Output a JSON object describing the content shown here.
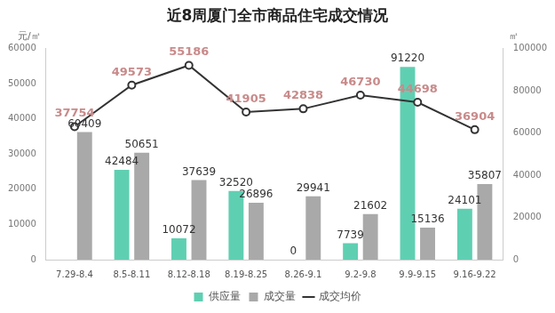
{
  "chart_data": {
    "type": "bar",
    "title": "近8周厦门全市商品住宅成交情况",
    "categories": [
      "7.29-8.4",
      "8.5-8.11",
      "8.12-8.18",
      "8.19-8.25",
      "8.26-9.1",
      "9.2-9.8",
      "9.9-9.15",
      "9.16-9.22"
    ],
    "series": [
      {
        "name": "供应量",
        "type": "bar",
        "axis": "y2",
        "color": "#5fcfb2",
        "values": [
          null,
          42484,
          10072,
          32520,
          0,
          7739,
          91220,
          24101
        ]
      },
      {
        "name": "成交量",
        "type": "bar",
        "axis": "y2",
        "color": "#a9a9a9",
        "values": [
          60409,
          50651,
          37639,
          26896,
          29941,
          21602,
          15136,
          35807
        ]
      },
      {
        "name": "成交均价",
        "type": "line",
        "color": "#333333",
        "marker": "circle",
        "values": [
          37754,
          49573,
          55186,
          41905,
          42838,
          46730,
          44698,
          36904
        ]
      }
    ],
    "y_label": "元/㎡",
    "y2_label": "㎡",
    "ylim": [
      0,
      60000
    ],
    "yticks": [
      0,
      10000,
      20000,
      30000,
      40000,
      50000,
      60000
    ],
    "y2lim": [
      0,
      100000
    ],
    "y2ticks": [
      0,
      20000,
      40000,
      60000,
      80000,
      100000
    ],
    "data_labels": true,
    "legend": "bottom",
    "grid": false
  }
}
